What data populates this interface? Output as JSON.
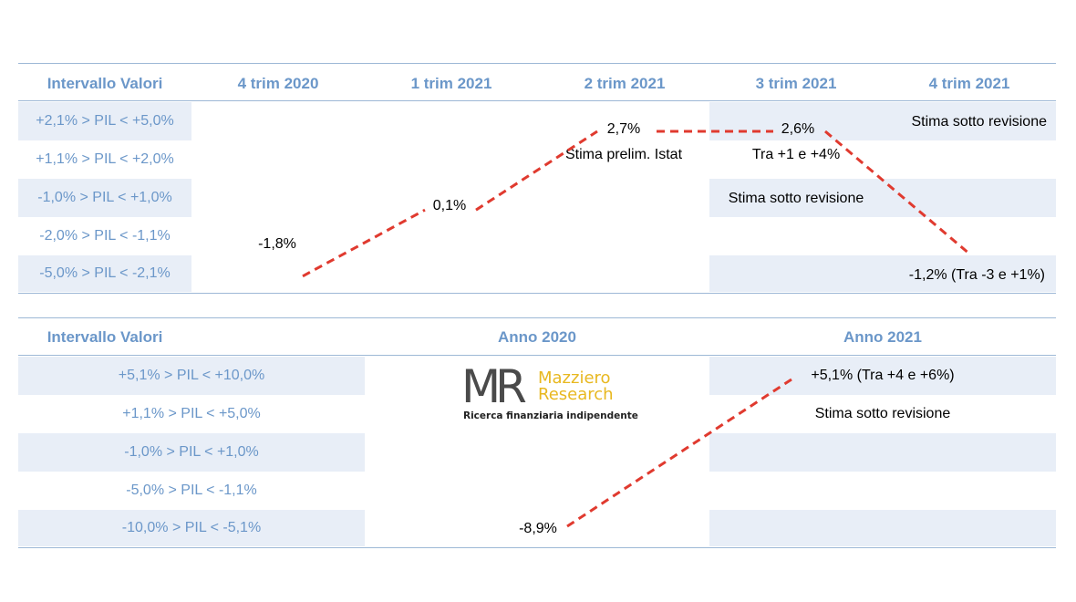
{
  "chart_data": [
    {
      "type": "line",
      "title": "",
      "header_label": "Intervallo Valori",
      "categories": [
        "4 trim 2020",
        "1 trim 2021",
        "2 trim 2021",
        "3 trim 2021",
        "4 trim 2021"
      ],
      "ranges": [
        "+2,1% > PIL < +5,0%",
        "+1,1% > PIL < +2,0%",
        "-1,0% > PIL < +1,0%",
        "-2,0% > PIL < -1,1%",
        "-5,0% > PIL < -2,1%"
      ],
      "series": [
        {
          "values": [
            -1.8,
            0.1,
            2.7,
            2.6,
            -1.2
          ]
        }
      ],
      "point_labels": [
        "-1,8%",
        "0,1%",
        "2,7%",
        "2,6%",
        "-1,2% (Tra -3 e +1%)"
      ],
      "annotations": [
        {
          "text": "Stima prelim. Istat"
        },
        {
          "text": "Tra +1 e +4%"
        },
        {
          "text": "Stima sotto revisione"
        },
        {
          "text": "Stima sotto revisione"
        }
      ],
      "line_color": "#e03a2f"
    },
    {
      "type": "line",
      "title": "",
      "header_label": "Intervallo Valori",
      "categories": [
        "Anno 2020",
        "Anno 2021"
      ],
      "ranges": [
        "+5,1% > PIL < +10,0%",
        "+1,1% > PIL < +5,0%",
        "-1,0% > PIL < +1,0%",
        "-5,0% > PIL < -1,1%",
        "-10,0% > PIL < -5,1%"
      ],
      "series": [
        {
          "values": [
            -8.9,
            5.1
          ]
        }
      ],
      "point_labels": [
        "-8,9%",
        "+5,1% (Tra +4 e +6%)"
      ],
      "annotations": [
        {
          "text": "Stima sotto revisione"
        }
      ],
      "line_color": "#e03a2f"
    }
  ],
  "logo": {
    "mark": "MR",
    "name_line1": "Mazziero",
    "name_line2": "Research",
    "tagline": "Ricerca finanziaria indipendente"
  },
  "colors": {
    "header_text": "#6b97c9",
    "band": "#e8eef7",
    "rule": "#9db8d6",
    "line": "#e03a2f"
  }
}
